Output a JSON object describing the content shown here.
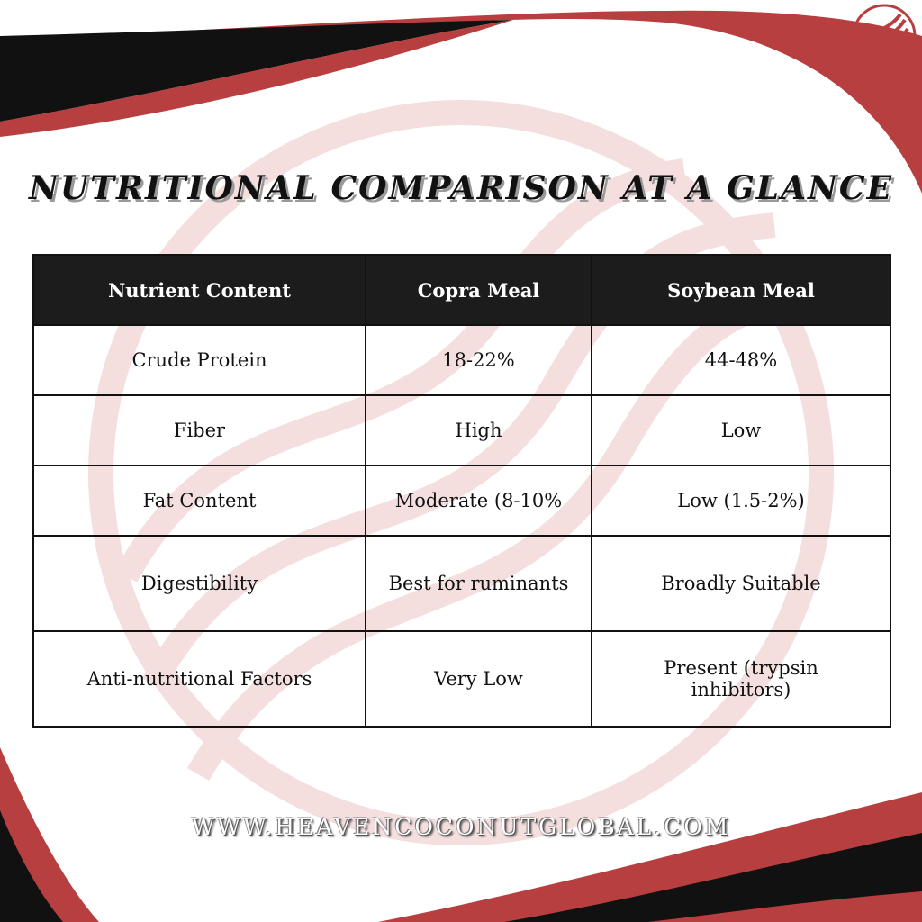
{
  "header": {
    "title": "NUTRITIONAL COMPARISON AT A GLANCE"
  },
  "table": {
    "columns": [
      "Nutrient Content",
      "Copra Meal",
      "Soybean Meal"
    ],
    "rows": [
      [
        "Crude Protein",
        "18-22%",
        "44-48%"
      ],
      [
        "Fiber",
        "High",
        "Low"
      ],
      [
        "Fat Content",
        "Moderate (8-10%",
        "Low (1.5-2%)"
      ],
      [
        "Digestibility",
        "Best for ruminants",
        "Broadly Suitable"
      ],
      [
        "Anti-nutritional Factors",
        "Very Low",
        "Present (trypsin inhibitors)"
      ]
    ]
  },
  "footer": {
    "website": "WWW.HEAVENCOCONUTGLOBAL.COM"
  }
}
